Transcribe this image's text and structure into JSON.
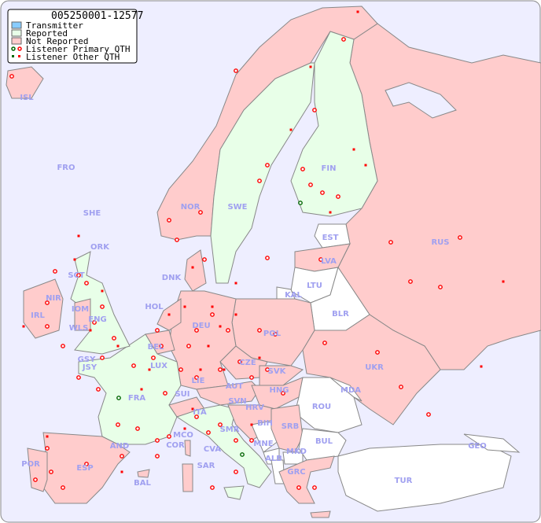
{
  "map": {
    "title": "005250001-12577",
    "colors": {
      "sea": "#eeeeff",
      "transmitter": "#88ccff",
      "reported": "#e8ffe8",
      "not_reported": "#ffcccc",
      "no_data": "#ffffff",
      "primary_qth": "#ff0000",
      "other_qth": "#ff0000",
      "border": "#888888"
    },
    "legend": [
      {
        "label": "Transmitter",
        "type": "transmitter"
      },
      {
        "label": "Reported",
        "type": "reported"
      },
      {
        "label": "Not Reported",
        "type": "not_reported"
      },
      {
        "label": "Listener Primary QTH",
        "type": "primary"
      },
      {
        "label": "Listener Other QTH",
        "type": "other"
      }
    ],
    "countries": {
      "ISL": "ISL",
      "FRO": "FRO",
      "SHE": "SHE",
      "ORK": "ORK",
      "NOR": "NOR",
      "SWE": "SWE",
      "FIN": "FIN",
      "EST": "EST",
      "LVA": "LVA",
      "LTU": "LTU",
      "RUS": "RUS",
      "DNK": "DNK",
      "KAL": "KAL",
      "BLR": "BLR",
      "HOL": "HOL",
      "DEU": "DEU",
      "POL": "POL",
      "IRL": "IRL",
      "NIR": "NIR",
      "SCT": "SCT",
      "IOM": "IOM",
      "WLS": "WLS",
      "ENG": "ENG",
      "BEL": "BEL",
      "LUX": "LUX",
      "GSY": "GSY",
      "JSY": "JSY",
      "CZE": "CZE",
      "SVK": "SVK",
      "UKR": "UKR",
      "FRA": "FRA",
      "SUI": "SUI",
      "LIE": "LIE",
      "AUT": "AUT",
      "HNG": "HNG",
      "MDA": "MDA",
      "SVN": "SVN",
      "HRV": "HRV",
      "ROU": "ROU",
      "ITA": "ITA",
      "BIH": "BIH",
      "SRB": "SRB",
      "MCO": "MCO",
      "COR": "COR",
      "SMR": "SMR",
      "CVA": "CVA",
      "BUL": "BUL",
      "GEO": "GEO",
      "AND": "AND",
      "ESP": "ESP",
      "POR": "POR",
      "BAL": "BAL",
      "SAR": "SAR",
      "ALB": "ALB",
      "MNE": "MNE",
      "MKD": "MKD",
      "GRC": "GRC",
      "TUR": "TUR"
    }
  }
}
